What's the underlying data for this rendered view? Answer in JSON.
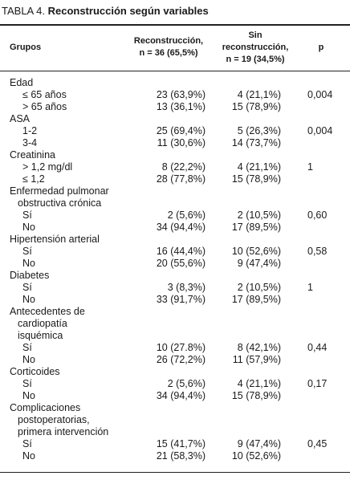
{
  "title": {
    "label": "TABLA 4.",
    "text": "Reconstrucción según variables"
  },
  "table": {
    "header": {
      "groups": "Grupos",
      "col1": [
        "Reconstrucción,",
        "n = 36 (65,5%)"
      ],
      "col2": [
        "Sin",
        "reconstrucción,",
        "n = 19 (34,5%)"
      ],
      "p": "p"
    },
    "groups": [
      {
        "name": [
          "Edad"
        ],
        "rows": [
          {
            "label": "≤ 65 años",
            "values": [
              "23 (63,9%)",
              "4 (21,1%)"
            ],
            "p": "0,004"
          },
          {
            "label": "> 65 años",
            "values": [
              "13 (36,1%)",
              "15 (78,9%)"
            ]
          }
        ]
      },
      {
        "name": [
          "ASA"
        ],
        "rows": [
          {
            "label": "1-2",
            "values": [
              "25 (69,4%)",
              "5 (26,3%)"
            ],
            "p": "0,004"
          },
          {
            "label": "3-4",
            "values": [
              "11 (30,6%)",
              "14 (73,7%)"
            ]
          }
        ]
      },
      {
        "name": [
          "Creatinina"
        ],
        "rows": [
          {
            "label": "> 1,2 mg/dl",
            "values": [
              "8 (22,2%)",
              "4 (21,1%)"
            ],
            "p": "1"
          },
          {
            "label": "≤ 1,2",
            "values": [
              "28 (77,8%)",
              "15 (78,9%)"
            ]
          }
        ]
      },
      {
        "name": [
          "Enfermedad pulmonar",
          "obstructiva crónica"
        ],
        "rows": [
          {
            "label": "Sí",
            "values": [
              "2 (5,6%)",
              "2 (10,5%)"
            ],
            "p": "0,60"
          },
          {
            "label": "No",
            "values": [
              "34 (94,4%)",
              "17 (89,5%)"
            ]
          }
        ]
      },
      {
        "name": [
          "Hipertensión arterial"
        ],
        "rows": [
          {
            "label": "Sí",
            "values": [
              "16 (44,4%)",
              "10 (52,6%)"
            ],
            "p": "0,58"
          },
          {
            "label": "No",
            "values": [
              "20 (55,6%)",
              "9 (47,4%)"
            ]
          }
        ]
      },
      {
        "name": [
          "Diabetes"
        ],
        "rows": [
          {
            "label": "Sí",
            "values": [
              "3 (8,3%)",
              "2 (10,5%)"
            ],
            "p": "1"
          },
          {
            "label": "No",
            "values": [
              "33 (91,7%)",
              "17 (89,5%)"
            ]
          }
        ]
      },
      {
        "name": [
          "Antecedentes de",
          "cardiopatía",
          "isquémica"
        ],
        "rows": [
          {
            "label": "Sí",
            "values": [
              "10 (27.8%)",
              "8 (42,1%)"
            ],
            "p": "0,44"
          },
          {
            "label": "No",
            "values": [
              "26 (72,2%)",
              "11 (57,9%)"
            ]
          }
        ]
      },
      {
        "name": [
          "Corticoides"
        ],
        "rows": [
          {
            "label": "Sí",
            "values": [
              "2 (5,6%)",
              "4 (21,1%)"
            ],
            "p": "0,17"
          },
          {
            "label": "No",
            "values": [
              "34 (94,4%)",
              "15 (78,9%)"
            ]
          }
        ]
      },
      {
        "name": [
          "Complicaciones",
          "postoperatorias,",
          "primera intervención"
        ],
        "rows": [
          {
            "label": "Sí",
            "values": [
              "15 (41,7%)",
              "9 (47,4%)"
            ],
            "p": "0,45"
          },
          {
            "label": "No",
            "values": [
              "21 (58,3%)",
              "10 (52,6%)"
            ]
          }
        ]
      }
    ]
  }
}
